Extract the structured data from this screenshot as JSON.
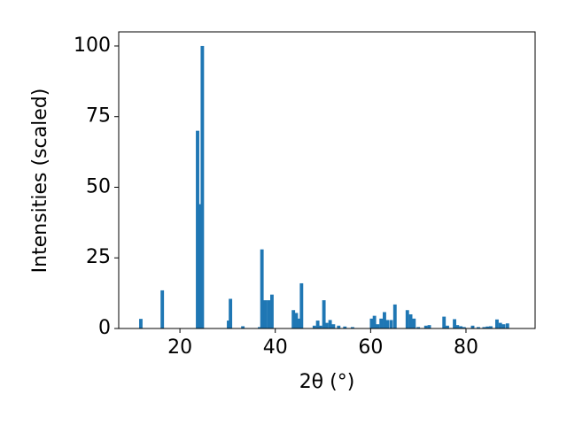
{
  "chart_data": {
    "type": "bar",
    "x_label": "2θ (°)",
    "y_label": "Intensities (scaled)",
    "color": "#1f77b4",
    "x": [
      11.8,
      16.3,
      23.7,
      24.2,
      24.7,
      30.2,
      30.6,
      33.2,
      36.7,
      37.2,
      37.9,
      38.6,
      39.3,
      43.8,
      44.4,
      45.0,
      45.5,
      48.2,
      48.9,
      49.5,
      50.2,
      50.8,
      51.5,
      52.2,
      53.3,
      54.6,
      56.2,
      60.2,
      60.8,
      61.5,
      62.2,
      62.9,
      63.5,
      64.3,
      65.1,
      67.7,
      68.4,
      69.1,
      70.0,
      71.6,
      72.3,
      75.4,
      76.1,
      77.6,
      78.2,
      78.9,
      79.6,
      81.4,
      82.6,
      83.8,
      84.5,
      85.2,
      86.5,
      87.2,
      87.9,
      88.7
    ],
    "values": [
      3.4,
      13.5,
      70,
      44,
      100,
      2.8,
      10.5,
      0.8,
      0.5,
      28,
      10,
      10,
      12,
      6.5,
      5.5,
      3.5,
      16,
      1,
      2.8,
      1,
      10,
      2,
      3,
      1.5,
      1,
      0.7,
      0.5,
      3.5,
      4.5,
      1.5,
      3.5,
      5.8,
      3,
      3,
      8.5,
      6.5,
      5,
      3.5,
      0.5,
      1,
      1.2,
      4.2,
      1,
      3.3,
      1.2,
      0.8,
      0.5,
      1,
      0.5,
      0.5,
      0.7,
      0.8,
      3.2,
      2,
      1.5,
      1.8
    ],
    "xlim": [
      7.16,
      94.5
    ],
    "ylim": [
      0,
      105
    ],
    "xticks": [
      20,
      40,
      60,
      80
    ],
    "yticks": [
      0,
      25,
      50,
      75,
      100
    ]
  }
}
